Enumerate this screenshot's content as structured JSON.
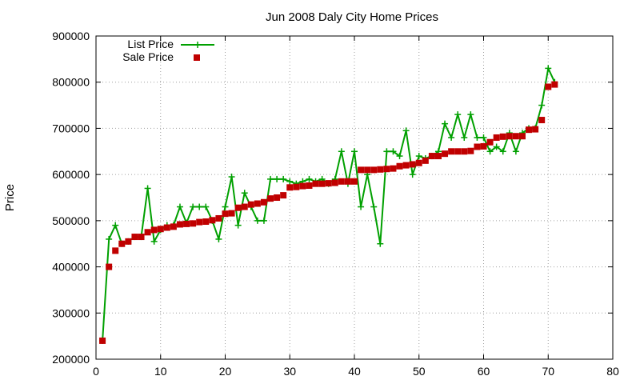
{
  "chart_data": {
    "type": "line",
    "title": "Jun 2008 Daly City Home Prices",
    "xlabel": "",
    "ylabel": "Price",
    "xlim": [
      0,
      80
    ],
    "ylim": [
      200000,
      900000
    ],
    "xticks": [
      "0",
      "10",
      "20",
      "30",
      "40",
      "50",
      "60",
      "70",
      "80"
    ],
    "yticks": [
      "200000",
      "300000",
      "400000",
      "500000",
      "600000",
      "700000",
      "800000",
      "900000"
    ],
    "grid": true,
    "legend_position": "top-left",
    "series": [
      {
        "name": "List Price",
        "style": "line-plus",
        "color": "#00a000",
        "x": [
          1,
          2,
          3,
          4,
          5,
          6,
          7,
          8,
          9,
          10,
          11,
          12,
          13,
          14,
          15,
          16,
          17,
          18,
          19,
          20,
          21,
          22,
          23,
          24,
          25,
          26,
          27,
          28,
          29,
          30,
          31,
          32,
          33,
          34,
          35,
          36,
          37,
          38,
          39,
          40,
          41,
          42,
          43,
          44,
          45,
          46,
          47,
          48,
          49,
          50,
          51,
          52,
          53,
          54,
          55,
          56,
          57,
          58,
          59,
          60,
          61,
          62,
          63,
          64,
          65,
          66,
          67,
          68,
          69,
          70,
          71
        ],
        "y": [
          240000,
          460000,
          490000,
          450000,
          455000,
          465000,
          465000,
          570000,
          455000,
          480000,
          490000,
          490000,
          530000,
          495000,
          530000,
          530000,
          530000,
          500000,
          460000,
          530000,
          595000,
          490000,
          560000,
          530000,
          500000,
          500000,
          590000,
          590000,
          590000,
          585000,
          580000,
          585000,
          590000,
          585000,
          590000,
          580000,
          590000,
          650000,
          580000,
          650000,
          530000,
          600000,
          530000,
          450000,
          650000,
          650000,
          640000,
          695000,
          600000,
          640000,
          635000,
          640000,
          650000,
          710000,
          680000,
          730000,
          680000,
          730000,
          680000,
          680000,
          650000,
          660000,
          650000,
          690000,
          650000,
          690000,
          700000,
          700000,
          750000,
          830000,
          800000
        ]
      },
      {
        "name": "Sale Price",
        "style": "points-square",
        "color": "#c00000",
        "x": [
          1,
          2,
          3,
          4,
          5,
          6,
          7,
          8,
          9,
          10,
          11,
          12,
          13,
          14,
          15,
          16,
          17,
          18,
          19,
          20,
          21,
          22,
          23,
          24,
          25,
          26,
          27,
          28,
          29,
          30,
          31,
          32,
          33,
          34,
          35,
          36,
          37,
          38,
          39,
          40,
          41,
          42,
          43,
          44,
          45,
          46,
          47,
          48,
          49,
          50,
          51,
          52,
          53,
          54,
          55,
          56,
          57,
          58,
          59,
          60,
          61,
          62,
          63,
          64,
          65,
          66,
          67,
          68,
          69,
          70,
          71
        ],
        "y": [
          240000,
          400000,
          435000,
          450000,
          455000,
          465000,
          465000,
          475000,
          480000,
          482000,
          485000,
          487000,
          492000,
          493000,
          494000,
          497000,
          498000,
          501000,
          505000,
          515000,
          516000,
          528000,
          530000,
          535000,
          537000,
          540000,
          548000,
          550000,
          555000,
          572000,
          573000,
          575000,
          576000,
          580000,
          580000,
          581000,
          582000,
          585000,
          585000,
          585000,
          610000,
          610000,
          610000,
          611000,
          612000,
          613000,
          618000,
          620000,
          622000,
          625000,
          630000,
          640000,
          640000,
          645000,
          650000,
          650000,
          650000,
          651000,
          660000,
          661000,
          670000,
          680000,
          682000,
          683000,
          683000,
          683000,
          697000,
          698000,
          718000,
          790000,
          795000
        ]
      }
    ]
  }
}
